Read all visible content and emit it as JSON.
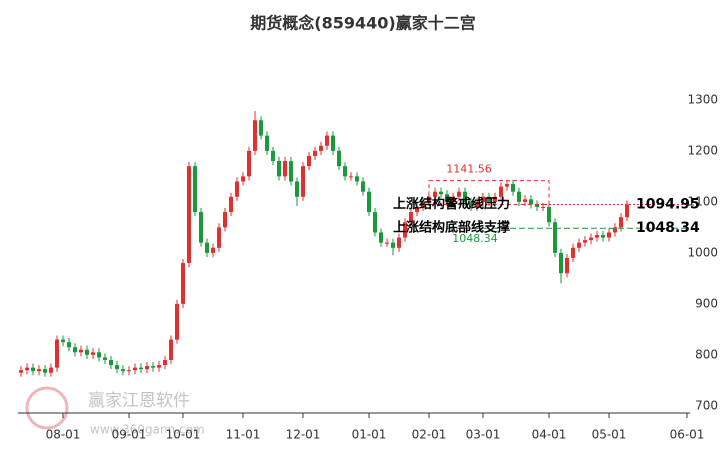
{
  "chart_data": {
    "type": "candlestick",
    "title": "期货概念(859440)赢家十二宫",
    "watermark": [
      "赢家江恩软件",
      "www.360gann.com"
    ],
    "up_color": "#e03030",
    "down_color": "#1a9a3a",
    "ylim": [
      686,
      1388
    ],
    "yticks": [
      700,
      800,
      900,
      1000,
      1100,
      1200,
      1300
    ],
    "categories": [
      null,
      null,
      null,
      null,
      null,
      null,
      null,
      "08-01",
      null,
      null,
      null,
      null,
      null,
      null,
      null,
      null,
      null,
      null,
      "09-01",
      null,
      null,
      null,
      null,
      null,
      null,
      null,
      null,
      "10-01",
      null,
      null,
      null,
      null,
      null,
      null,
      null,
      null,
      null,
      "11-01",
      null,
      null,
      null,
      null,
      null,
      null,
      null,
      null,
      null,
      "12-01",
      null,
      null,
      null,
      null,
      null,
      null,
      null,
      null,
      null,
      null,
      "01-01",
      null,
      null,
      null,
      null,
      null,
      null,
      null,
      null,
      null,
      "02-01",
      null,
      null,
      null,
      null,
      null,
      null,
      null,
      null,
      "03-01",
      null,
      null,
      null,
      null,
      null,
      null,
      null,
      null,
      null,
      null,
      "04-01",
      null,
      null,
      null,
      null,
      null,
      null,
      null,
      null,
      null,
      "05-01",
      null,
      null,
      null,
      null,
      null,
      null,
      null,
      null,
      null,
      null,
      null,
      null,
      "06-01"
    ],
    "ohlc": [
      [
        765,
        778,
        757,
        770
      ],
      [
        770,
        783,
        762,
        775
      ],
      [
        775,
        783,
        760,
        768
      ],
      [
        768,
        780,
        760,
        772
      ],
      [
        772,
        780,
        757,
        765
      ],
      [
        765,
        783,
        757,
        775
      ],
      [
        775,
        838,
        767,
        830
      ],
      [
        830,
        838,
        817,
        825
      ],
      [
        825,
        833,
        807,
        815
      ],
      [
        815,
        823,
        797,
        805
      ],
      [
        805,
        818,
        797,
        810
      ],
      [
        810,
        818,
        792,
        800
      ],
      [
        800,
        813,
        792,
        805
      ],
      [
        805,
        813,
        787,
        795
      ],
      [
        795,
        803,
        782,
        790
      ],
      [
        790,
        798,
        772,
        780
      ],
      [
        780,
        788,
        764,
        772
      ],
      [
        772,
        780,
        760,
        768
      ],
      [
        768,
        778,
        760,
        770
      ],
      [
        770,
        783,
        762,
        775
      ],
      [
        775,
        783,
        764,
        772
      ],
      [
        772,
        786,
        764,
        778
      ],
      [
        778,
        786,
        767,
        775
      ],
      [
        775,
        788,
        767,
        780
      ],
      [
        780,
        798,
        772,
        790
      ],
      [
        790,
        838,
        782,
        830
      ],
      [
        830,
        908,
        822,
        900
      ],
      [
        900,
        988,
        892,
        980
      ],
      [
        980,
        1178,
        972,
        1170
      ],
      [
        1170,
        1178,
        1072,
        1080
      ],
      [
        1080,
        1088,
        1012,
        1020
      ],
      [
        1020,
        1028,
        992,
        1000
      ],
      [
        1000,
        1018,
        992,
        1010
      ],
      [
        1010,
        1058,
        1002,
        1050
      ],
      [
        1050,
        1088,
        1042,
        1080
      ],
      [
        1080,
        1118,
        1072,
        1110
      ],
      [
        1110,
        1148,
        1102,
        1140
      ],
      [
        1140,
        1158,
        1132,
        1150
      ],
      [
        1150,
        1208,
        1142,
        1200
      ],
      [
        1200,
        1278,
        1192,
        1260
      ],
      [
        1260,
        1268,
        1222,
        1230
      ],
      [
        1230,
        1238,
        1192,
        1200
      ],
      [
        1200,
        1208,
        1172,
        1180
      ],
      [
        1180,
        1188,
        1142,
        1150
      ],
      [
        1150,
        1188,
        1142,
        1180
      ],
      [
        1180,
        1188,
        1132,
        1140
      ],
      [
        1140,
        1148,
        1092,
        1110
      ],
      [
        1110,
        1178,
        1102,
        1170
      ],
      [
        1170,
        1198,
        1162,
        1190
      ],
      [
        1190,
        1208,
        1182,
        1200
      ],
      [
        1200,
        1218,
        1192,
        1210
      ],
      [
        1210,
        1238,
        1202,
        1230
      ],
      [
        1230,
        1238,
        1192,
        1200
      ],
      [
        1200,
        1208,
        1162,
        1170
      ],
      [
        1170,
        1178,
        1142,
        1150
      ],
      [
        1150,
        1158,
        1142,
        1150
      ],
      [
        1150,
        1158,
        1132,
        1140
      ],
      [
        1140,
        1148,
        1112,
        1120
      ],
      [
        1120,
        1128,
        1072,
        1080
      ],
      [
        1080,
        1088,
        1032,
        1040
      ],
      [
        1040,
        1048,
        1012,
        1020
      ],
      [
        1020,
        1028,
        1012,
        1020
      ],
      [
        1020,
        1028,
        995,
        1010
      ],
      [
        1010,
        1038,
        1002,
        1030
      ],
      [
        1030,
        1068,
        1022,
        1060
      ],
      [
        1060,
        1088,
        1052,
        1080
      ],
      [
        1080,
        1098,
        1072,
        1090
      ],
      [
        1090,
        1108,
        1082,
        1100
      ],
      [
        1100,
        1118,
        1092,
        1110
      ],
      [
        1110,
        1128,
        1102,
        1120
      ],
      [
        1120,
        1128,
        1107,
        1115
      ],
      [
        1115,
        1123,
        1092,
        1100
      ],
      [
        1100,
        1118,
        1092,
        1110
      ],
      [
        1110,
        1128,
        1102,
        1120
      ],
      [
        1120,
        1128,
        1092,
        1100
      ],
      [
        1100,
        1108,
        1082,
        1090
      ],
      [
        1090,
        1108,
        1082,
        1100
      ],
      [
        1100,
        1118,
        1092,
        1110
      ],
      [
        1110,
        1118,
        1092,
        1100
      ],
      [
        1100,
        1118,
        1092,
        1110
      ],
      [
        1110,
        1138,
        1102,
        1130
      ],
      [
        1130,
        1143,
        1122,
        1135
      ],
      [
        1135,
        1143,
        1112,
        1120
      ],
      [
        1120,
        1128,
        1092,
        1100
      ],
      [
        1100,
        1113,
        1092,
        1105
      ],
      [
        1105,
        1113,
        1087,
        1095
      ],
      [
        1095,
        1103,
        1082,
        1090
      ],
      [
        1090,
        1098,
        1082,
        1090
      ],
      [
        1090,
        1098,
        1052,
        1060
      ],
      [
        1060,
        1068,
        992,
        1000
      ],
      [
        1000,
        1008,
        940,
        960
      ],
      [
        960,
        998,
        952,
        990
      ],
      [
        990,
        1018,
        982,
        1010
      ],
      [
        1010,
        1028,
        1002,
        1020
      ],
      [
        1020,
        1033,
        1012,
        1025
      ],
      [
        1025,
        1038,
        1017,
        1030
      ],
      [
        1030,
        1043,
        1022,
        1035
      ],
      [
        1035,
        1043,
        1022,
        1030
      ],
      [
        1030,
        1048,
        1022,
        1040
      ],
      [
        1040,
        1058,
        1032,
        1050
      ],
      [
        1050,
        1078,
        1042,
        1070
      ],
      [
        1070,
        1103,
        1062,
        1095
      ],
      null,
      null,
      null,
      null,
      null,
      null,
      null,
      null,
      null,
      null
    ],
    "box_high": 1141.56,
    "levels": [
      {
        "name": "上涨结构警戒线压力",
        "value": 1094.95,
        "color": "#e03030"
      },
      {
        "name": "上涨结构底部线支撑",
        "value": 1048.34,
        "color": "#1a9a3a"
      }
    ]
  }
}
